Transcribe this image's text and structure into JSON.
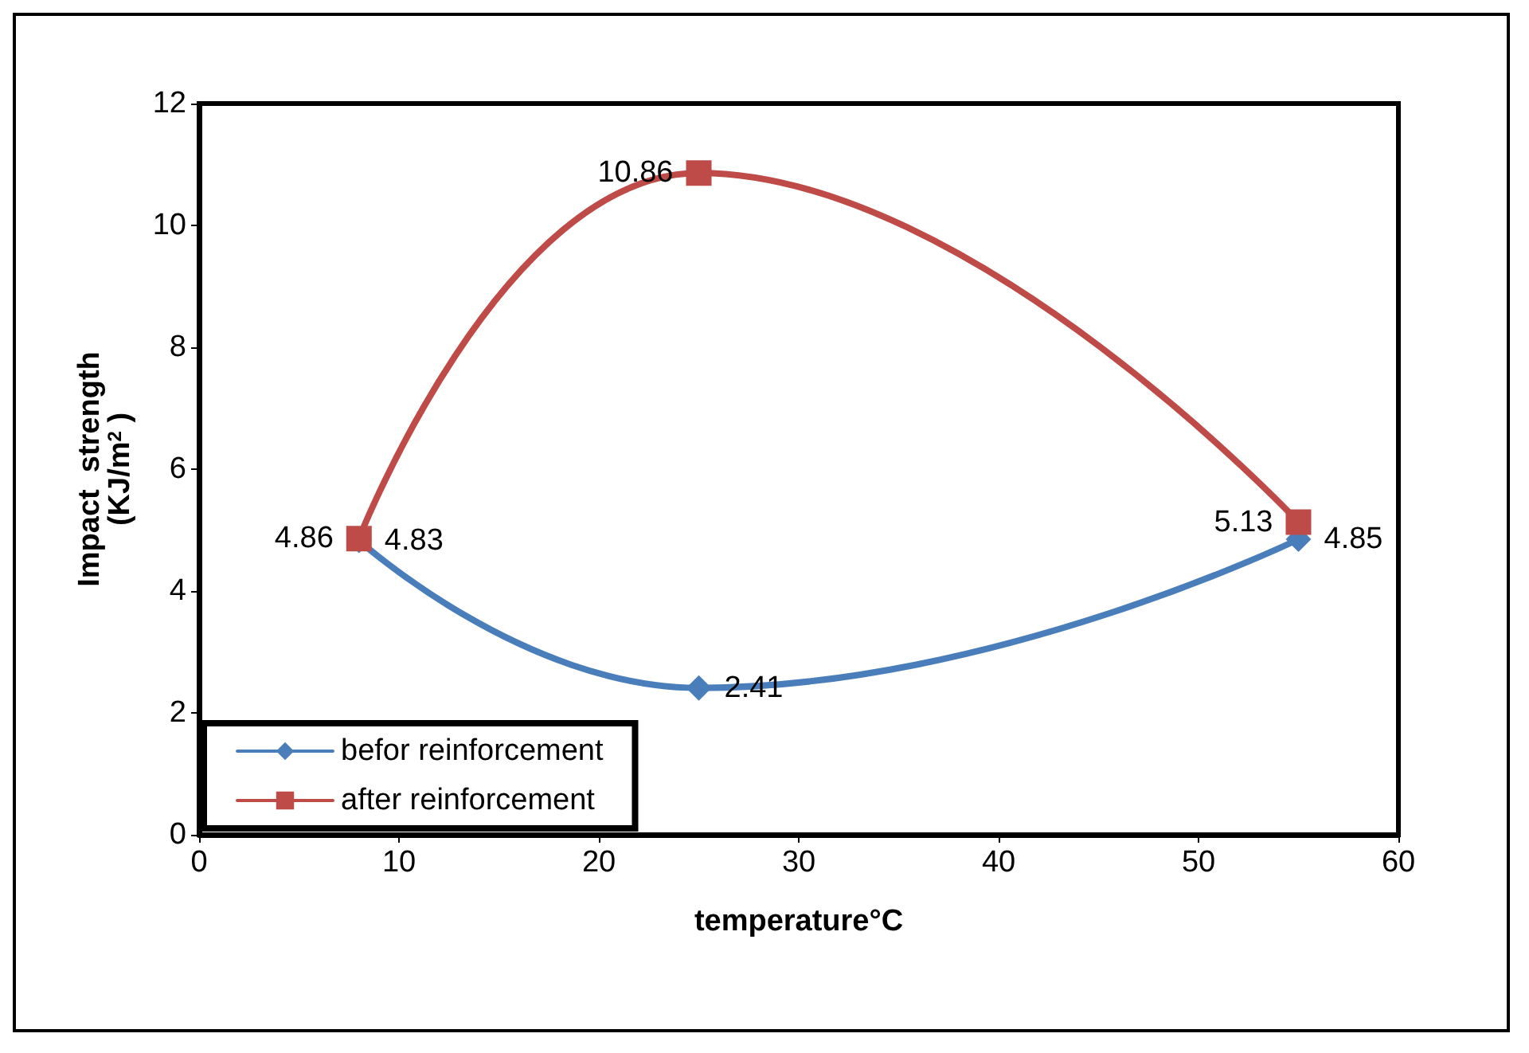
{
  "chart_data": {
    "type": "line",
    "xlabel": "temperature°C",
    "ylabel": "Impact  strength\n(KJ/m$^{2}$ )",
    "x": [
      8,
      25,
      55
    ],
    "series": [
      {
        "name": "befor reinforcement",
        "color": "#4a7ebb",
        "values": [
          4.83,
          2.41,
          4.85
        ],
        "marker": "diamond"
      },
      {
        "name": "after reinforcement",
        "color": "#be4b48",
        "values": [
          4.86,
          10.86,
          5.13
        ],
        "marker": "square"
      }
    ],
    "xlim": [
      0,
      60
    ],
    "xticks": [
      0,
      10,
      20,
      30,
      40,
      50,
      60
    ],
    "ylim": [
      0,
      12
    ],
    "yticks": [
      0,
      2,
      4,
      6,
      8,
      10,
      12
    ],
    "grid": false,
    "legend": "bottom left",
    "data_labels": true,
    "line_style": "solid"
  }
}
